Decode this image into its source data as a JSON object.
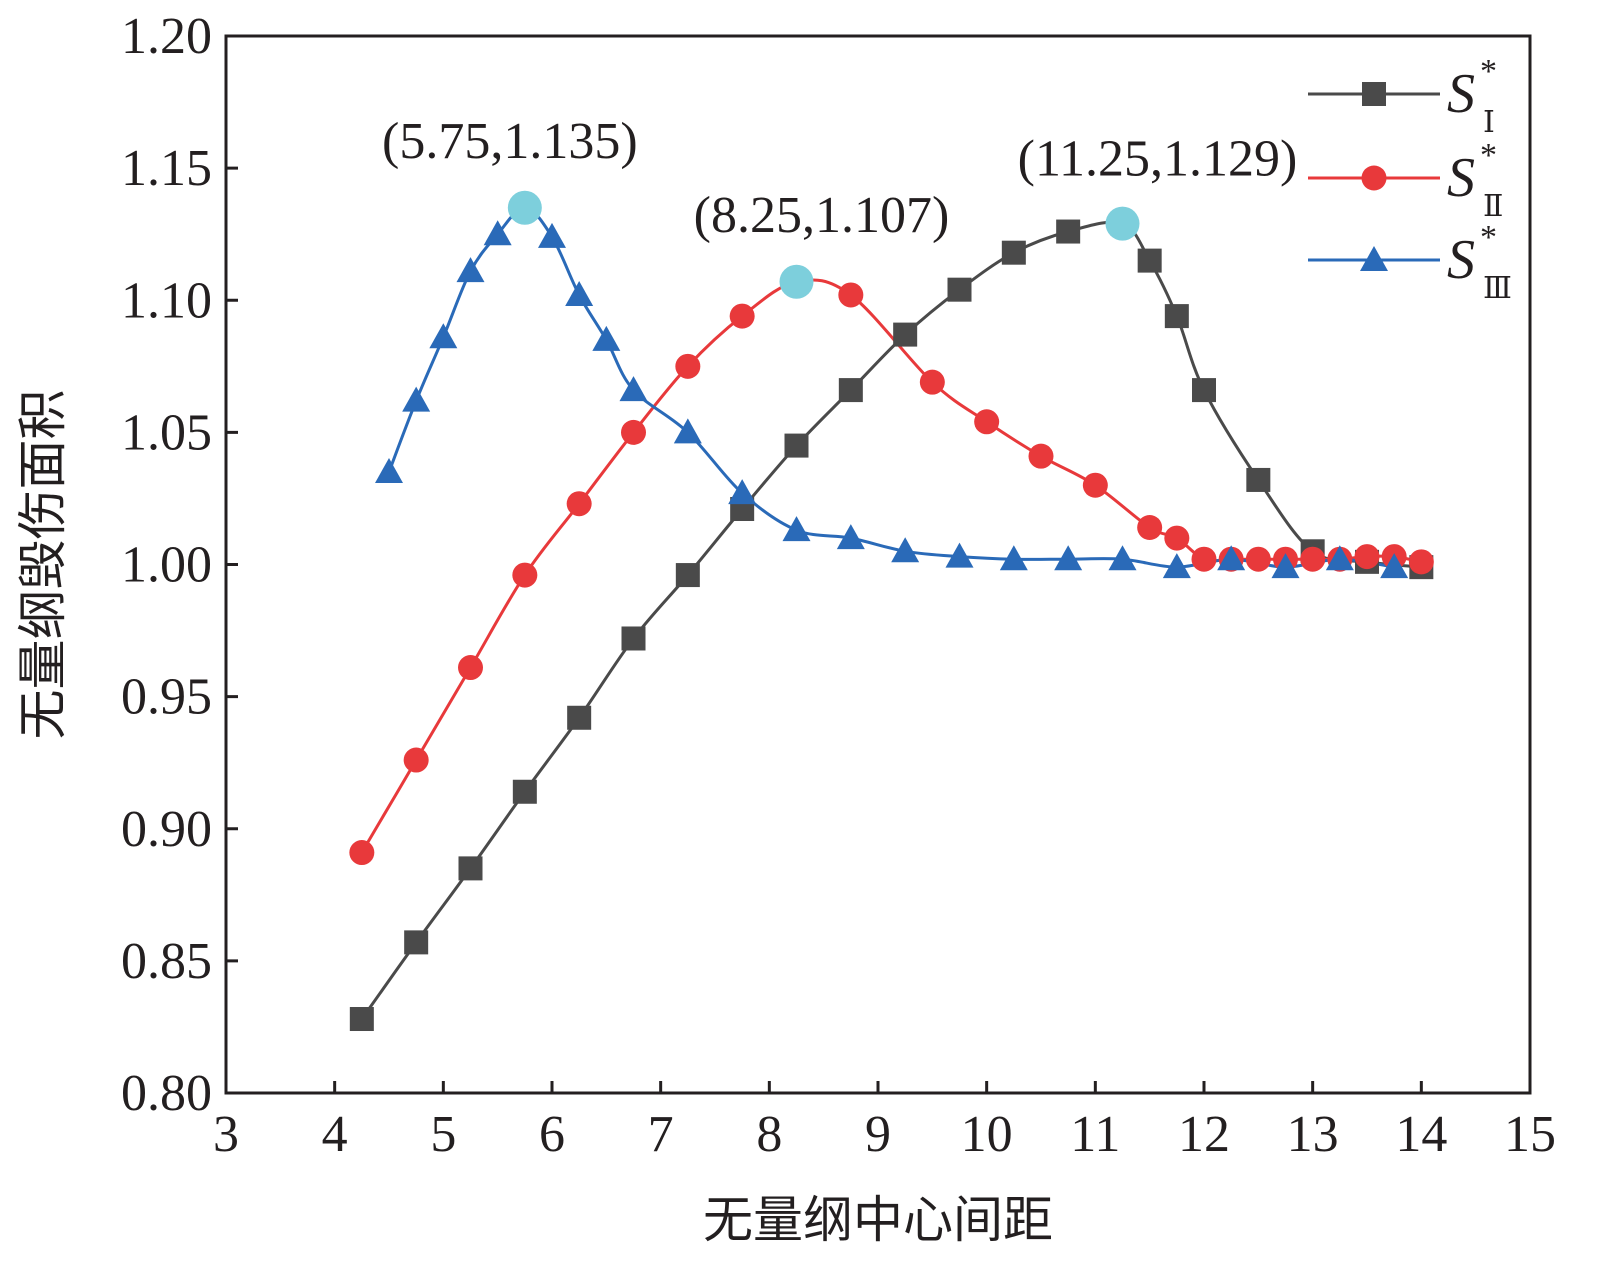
{
  "chart_data": {
    "type": "line",
    "xlabel": "无量纲中心间距",
    "ylabel": "无量纲毁伤面积",
    "xlim": [
      3,
      15
    ],
    "ylim": [
      0.8,
      1.2
    ],
    "xticks": [
      3,
      4,
      5,
      6,
      7,
      8,
      9,
      10,
      11,
      12,
      13,
      14,
      15
    ],
    "yticks": [
      0.8,
      0.85,
      0.9,
      0.95,
      1.0,
      1.05,
      1.1,
      1.15,
      1.2
    ],
    "xtick_labels": [
      "3",
      "4",
      "5",
      "6",
      "7",
      "8",
      "9",
      "10",
      "11",
      "12",
      "13",
      "14",
      "15"
    ],
    "ytick_labels": [
      "0.80",
      "0.85",
      "0.90",
      "0.95",
      "1.00",
      "1.05",
      "1.10",
      "1.15",
      "1.20"
    ],
    "grid": false,
    "legend_position": "top-right",
    "series": [
      {
        "name": "S*I",
        "legend_main": "S",
        "legend_sup": "*",
        "legend_sub": "Ⅰ",
        "color": "#4a4a4a",
        "marker": "square",
        "x": [
          4.25,
          4.75,
          5.25,
          5.75,
          6.25,
          6.75,
          7.25,
          7.75,
          8.25,
          8.75,
          9.25,
          9.75,
          10.25,
          10.75,
          11.25,
          11.5,
          11.75,
          12.0,
          12.5,
          13.0,
          13.5,
          14.0
        ],
        "y": [
          0.828,
          0.857,
          0.885,
          0.914,
          0.942,
          0.972,
          0.996,
          1.021,
          1.045,
          1.066,
          1.087,
          1.104,
          1.118,
          1.126,
          1.129,
          1.115,
          1.094,
          1.066,
          1.032,
          1.005,
          1.001,
          0.999
        ]
      },
      {
        "name": "S*II",
        "legend_main": "S",
        "legend_sup": "*",
        "legend_sub": "Ⅱ",
        "color": "#e8393b",
        "marker": "circle",
        "x": [
          4.25,
          4.75,
          5.25,
          5.75,
          6.25,
          6.75,
          7.25,
          7.75,
          8.25,
          8.75,
          9.5,
          10.0,
          10.5,
          11.0,
          11.5,
          11.75,
          12.0,
          12.25,
          12.5,
          12.75,
          13.0,
          13.25,
          13.5,
          13.75,
          14.0
        ],
        "y": [
          0.891,
          0.926,
          0.961,
          0.996,
          1.023,
          1.05,
          1.075,
          1.094,
          1.107,
          1.102,
          1.069,
          1.054,
          1.041,
          1.03,
          1.014,
          1.01,
          1.002,
          1.002,
          1.002,
          1.002,
          1.002,
          1.002,
          1.003,
          1.003,
          1.001
        ]
      },
      {
        "name": "S*III",
        "legend_main": "S",
        "legend_sup": "*",
        "legend_sub": "Ⅲ",
        "color": "#2a6ab8",
        "marker": "triangle",
        "x": [
          4.5,
          4.75,
          5.0,
          5.25,
          5.5,
          5.75,
          6.0,
          6.25,
          6.5,
          6.75,
          7.25,
          7.75,
          8.25,
          8.75,
          9.25,
          9.75,
          10.25,
          10.75,
          11.25,
          11.75,
          12.25,
          12.75,
          13.25,
          13.75
        ],
        "y": [
          1.035,
          1.062,
          1.086,
          1.111,
          1.125,
          1.135,
          1.124,
          1.102,
          1.085,
          1.066,
          1.05,
          1.027,
          1.013,
          1.01,
          1.005,
          1.003,
          1.002,
          1.002,
          1.002,
          0.999,
          1.002,
          0.999,
          1.002,
          0.999
        ]
      }
    ],
    "annotations": [
      {
        "text": "(5.75,1.135)",
        "x": 5.75,
        "y": 1.135
      },
      {
        "text": "(8.25,1.107)",
        "x": 8.25,
        "y": 1.107
      },
      {
        "text": "(11.25,1.129)",
        "x": 11.25,
        "y": 1.129
      }
    ],
    "peak_marker_color": "#7dcfdc"
  }
}
